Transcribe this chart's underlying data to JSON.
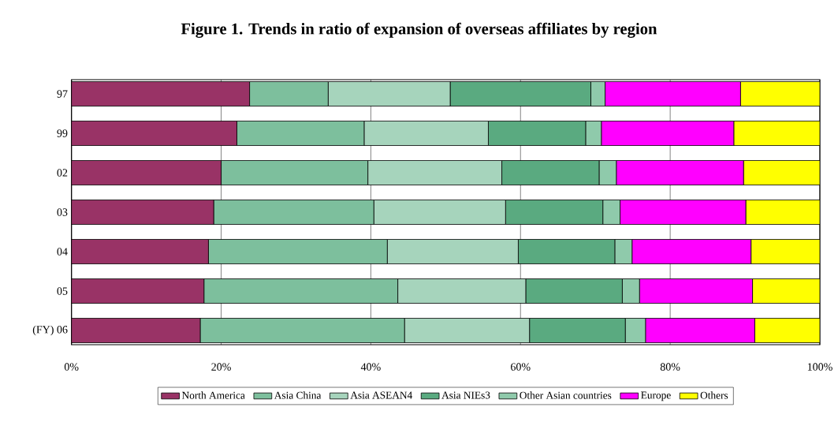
{
  "chart_data": {
    "type": "bar",
    "orientation": "horizontal",
    "stacked": true,
    "title": "Figure 1. Trends in ratio of expansion of overseas affiliates by region",
    "categories": [
      "97",
      "99",
      "02",
      "03",
      "04",
      "05",
      "(FY) 06"
    ],
    "series": [
      {
        "name": "North America",
        "color": "#993366",
        "values": [
          23.8,
          22.1,
          20.0,
          19.0,
          18.3,
          17.7,
          17.2
        ]
      },
      {
        "name": "Asia China",
        "color": "#7dbf9d",
        "values": [
          10.5,
          17.0,
          19.6,
          21.4,
          23.9,
          25.9,
          27.3
        ]
      },
      {
        "name": "Asia ASEAN4",
        "color": "#a6d4bc",
        "values": [
          16.3,
          16.6,
          17.9,
          17.6,
          17.5,
          17.1,
          16.7
        ]
      },
      {
        "name": "Asia NIEs3",
        "color": "#5aaa80",
        "values": [
          18.8,
          13.0,
          13.0,
          13.0,
          12.9,
          12.9,
          12.8
        ]
      },
      {
        "name": "Other Asian countries",
        "color": "#8fcaab",
        "values": [
          1.9,
          2.1,
          2.3,
          2.3,
          2.3,
          2.3,
          2.7
        ]
      },
      {
        "name": "Europe",
        "color": "#ff00ff",
        "values": [
          18.1,
          17.7,
          17.0,
          16.8,
          15.9,
          15.1,
          14.6
        ]
      },
      {
        "name": "Others",
        "color": "#ffff00",
        "values": [
          10.6,
          11.5,
          10.2,
          9.9,
          9.2,
          9.0,
          8.7
        ]
      }
    ],
    "xlim": [
      0,
      100
    ],
    "xticks": [
      {
        "value": 0,
        "label": "0%"
      },
      {
        "value": 20,
        "label": "20%"
      },
      {
        "value": 40,
        "label": "40%"
      },
      {
        "value": 60,
        "label": "60%"
      },
      {
        "value": 80,
        "label": "80%"
      },
      {
        "value": 100,
        "label": "100%"
      }
    ],
    "grid": "x",
    "legend": "bottom"
  }
}
